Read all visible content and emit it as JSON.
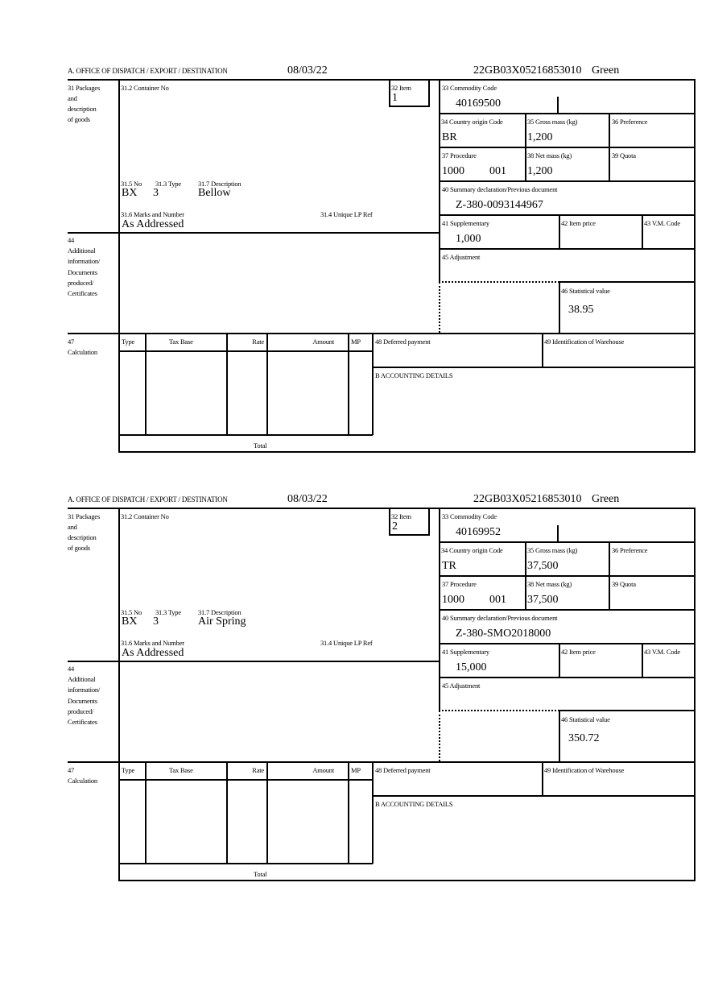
{
  "labels": {
    "office": "A.  OFFICE OF DISPATCH / EXPORT / DESTINATION",
    "packages": [
      "31 Packages",
      "and",
      "description",
      "of goods"
    ],
    "container_no": "31.2 Container No",
    "item": "32 Item",
    "no": "31.5 No",
    "type": "31.3 Type",
    "description": "31.7 Description",
    "marks": "31.6 Marks and Number",
    "unique_ref": "31.4 Unique LP Ref",
    "commodity": "33 Commodity Code",
    "country": "34 Country origin Code",
    "gross": "35 Gross mass (kg)",
    "preference": "36 Preference",
    "procedure": "37 Procedure",
    "net": "38 Net mass (kg)",
    "quota": "39 Quota",
    "summary": "40 Summary declaration/Previous document",
    "supplementary": "41 Supplementary",
    "item_price": "42 Item price",
    "vm_code": "43 V.M. Code",
    "adjustment": "45 Adjustment",
    "stat_value": "46 Statistical value",
    "additional": [
      "44",
      "Additional",
      "information/",
      "Documents",
      "produced/",
      "Certificates"
    ],
    "calculation": [
      "47",
      "Calculation"
    ],
    "calc_cols": [
      "Type",
      "Tax Base",
      "Rate",
      "Amount",
      "MP"
    ],
    "total": "Total",
    "deferred": "48 Deferred payment",
    "warehouse": "49 Identification of Warehouse",
    "accounting": "B ACCOUNTING DETAILS"
  },
  "forms": [
    {
      "date": "08/03/22",
      "reference": "22GB03X05216853010",
      "route": "Green",
      "item": "1",
      "no": "BX",
      "type": "3",
      "description": "Bellow",
      "marks": "As Addressed",
      "commodity": "40169500",
      "country": "BR",
      "gross": "1,200",
      "procedure": "1000",
      "procedure_extra": "001",
      "net": "1,200",
      "summary": "Z-380-0093144967",
      "supplementary": "1,000",
      "stat_value": "38.95"
    },
    {
      "date": "08/03/22",
      "reference": "22GB03X05216853010",
      "route": "Green",
      "item": "2",
      "no": "BX",
      "type": "3",
      "description": "Air Spring",
      "marks": "As Addressed",
      "commodity": "40169952",
      "country": "TR",
      "gross": "37,500",
      "procedure": "1000",
      "procedure_extra": "001",
      "net": "37,500",
      "summary": "Z-380-SMO2018000",
      "supplementary": "15,000",
      "stat_value": "350.72"
    }
  ]
}
